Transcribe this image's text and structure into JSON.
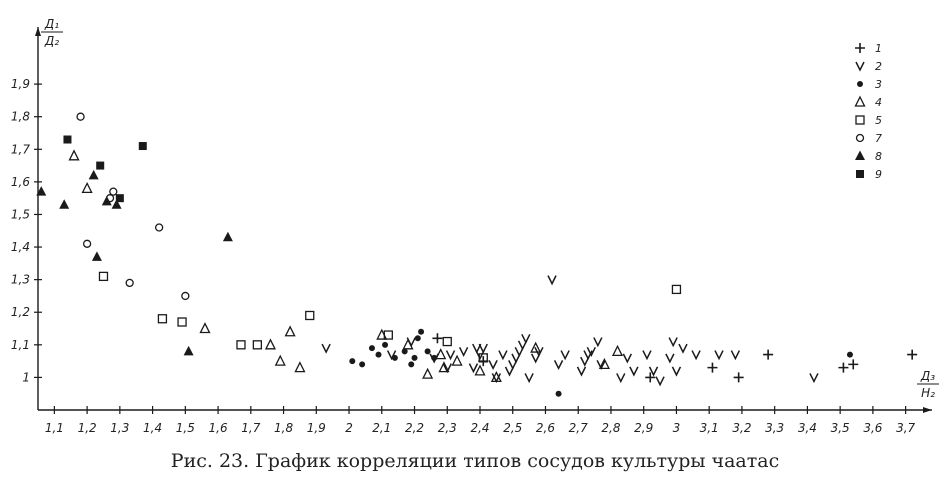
{
  "caption": "Рис. 23. График корреляции типов сосудов культуры чаатас",
  "chart_data": {
    "type": "scatter",
    "title": "",
    "xlabel": {
      "top": "Д₃",
      "bottom": "Н₂"
    },
    "ylabel": {
      "top": "Д₁",
      "bottom": "Д₂"
    },
    "x_ticks": [
      {
        "v": 1.1,
        "label": "1,1"
      },
      {
        "v": 1.2,
        "label": "1,2"
      },
      {
        "v": 1.3,
        "label": "1,3"
      },
      {
        "v": 1.4,
        "label": "1,4"
      },
      {
        "v": 1.5,
        "label": "1,5"
      },
      {
        "v": 1.6,
        "label": "1,6"
      },
      {
        "v": 1.7,
        "label": "1,7"
      },
      {
        "v": 1.8,
        "label": "1,8"
      },
      {
        "v": 1.9,
        "label": "1,9"
      },
      {
        "v": 2.0,
        "label": "2"
      },
      {
        "v": 2.1,
        "label": "2,1"
      },
      {
        "v": 2.2,
        "label": "2,2"
      },
      {
        "v": 2.3,
        "label": "2,3"
      },
      {
        "v": 2.4,
        "label": "2,4"
      },
      {
        "v": 2.5,
        "label": "2,5"
      },
      {
        "v": 2.6,
        "label": "2,6"
      },
      {
        "v": 2.7,
        "label": "2,7"
      },
      {
        "v": 2.8,
        "label": "2,8"
      },
      {
        "v": 2.9,
        "label": "2,9"
      },
      {
        "v": 3.0,
        "label": "3"
      },
      {
        "v": 3.1,
        "label": "3,1"
      },
      {
        "v": 3.2,
        "label": "3,2"
      },
      {
        "v": 3.3,
        "label": "3,3"
      },
      {
        "v": 3.4,
        "label": "3,4"
      },
      {
        "v": 3.5,
        "label": "3,5"
      },
      {
        "v": 3.6,
        "label": "3,6"
      },
      {
        "v": 3.7,
        "label": "3,7"
      }
    ],
    "y_ticks": [
      {
        "v": 1.0,
        "label": "1"
      },
      {
        "v": 1.1,
        "label": "1,1"
      },
      {
        "v": 1.2,
        "label": "1,2"
      },
      {
        "v": 1.3,
        "label": "1,3"
      },
      {
        "v": 1.4,
        "label": "1,4"
      },
      {
        "v": 1.5,
        "label": "1,5"
      },
      {
        "v": 1.6,
        "label": "1,6"
      },
      {
        "v": 1.7,
        "label": "1,7"
      },
      {
        "v": 1.8,
        "label": "1,8"
      },
      {
        "v": 1.9,
        "label": "1,9"
      }
    ],
    "xlim": [
      1.05,
      3.75
    ],
    "ylim": [
      0.9,
      2.02
    ],
    "grid": false,
    "legend_position": "top-right",
    "legend": [
      {
        "label": "1",
        "marker": "plus"
      },
      {
        "label": "2",
        "marker": "v"
      },
      {
        "label": "3",
        "marker": "dot"
      },
      {
        "label": "4",
        "marker": "triangle-open"
      },
      {
        "label": "5",
        "marker": "square-open"
      },
      {
        "label": "7",
        "marker": "circle-open"
      },
      {
        "label": "8",
        "marker": "triangle-filled"
      },
      {
        "label": "9",
        "marker": "square-filled"
      }
    ],
    "series": [
      {
        "marker": "plus",
        "points": [
          [
            2.27,
            1.12
          ],
          [
            2.41,
            1.05
          ],
          [
            2.92,
            1.0
          ],
          [
            3.11,
            1.03
          ],
          [
            3.19,
            1.0
          ],
          [
            3.28,
            1.07
          ],
          [
            3.51,
            1.03
          ],
          [
            3.54,
            1.04
          ],
          [
            3.72,
            1.07
          ]
        ]
      },
      {
        "marker": "v",
        "points": [
          [
            1.93,
            1.09
          ],
          [
            2.13,
            1.07
          ],
          [
            2.19,
            1.11
          ],
          [
            2.26,
            1.06
          ],
          [
            2.3,
            1.03
          ],
          [
            2.31,
            1.07
          ],
          [
            2.35,
            1.08
          ],
          [
            2.38,
            1.03
          ],
          [
            2.39,
            1.09
          ],
          [
            2.4,
            1.07
          ],
          [
            2.41,
            1.09
          ],
          [
            2.44,
            1.04
          ],
          [
            2.45,
            1.0
          ],
          [
            2.47,
            1.07
          ],
          [
            2.49,
            1.02
          ],
          [
            2.5,
            1.04
          ],
          [
            2.51,
            1.06
          ],
          [
            2.52,
            1.08
          ],
          [
            2.53,
            1.1
          ],
          [
            2.54,
            1.12
          ],
          [
            2.55,
            1.0
          ],
          [
            2.57,
            1.06
          ],
          [
            2.58,
            1.08
          ],
          [
            2.62,
            1.3
          ],
          [
            2.64,
            1.04
          ],
          [
            2.66,
            1.07
          ],
          [
            2.71,
            1.02
          ],
          [
            2.72,
            1.05
          ],
          [
            2.73,
            1.07
          ],
          [
            2.74,
            1.08
          ],
          [
            2.76,
            1.11
          ],
          [
            2.77,
            1.04
          ],
          [
            2.83,
            1.0
          ],
          [
            2.85,
            1.06
          ],
          [
            2.87,
            1.02
          ],
          [
            2.91,
            1.07
          ],
          [
            2.93,
            1.02
          ],
          [
            2.95,
            0.99
          ],
          [
            2.98,
            1.06
          ],
          [
            2.99,
            1.11
          ],
          [
            3.0,
            1.02
          ],
          [
            3.02,
            1.09
          ],
          [
            3.06,
            1.07
          ],
          [
            3.13,
            1.07
          ],
          [
            3.18,
            1.07
          ],
          [
            3.42,
            1.0
          ]
        ]
      },
      {
        "marker": "dot",
        "points": [
          [
            2.01,
            1.05
          ],
          [
            2.04,
            1.04
          ],
          [
            2.07,
            1.09
          ],
          [
            2.09,
            1.07
          ],
          [
            2.11,
            1.1
          ],
          [
            2.14,
            1.06
          ],
          [
            2.17,
            1.08
          ],
          [
            2.19,
            1.04
          ],
          [
            2.2,
            1.06
          ],
          [
            2.21,
            1.12
          ],
          [
            2.22,
            1.14
          ],
          [
            2.24,
            1.08
          ],
          [
            2.26,
            1.06
          ],
          [
            2.64,
            0.95
          ],
          [
            3.53,
            1.07
          ]
        ]
      },
      {
        "marker": "triangle-open",
        "points": [
          [
            1.16,
            1.68
          ],
          [
            1.2,
            1.58
          ],
          [
            1.56,
            1.15
          ],
          [
            1.76,
            1.1
          ],
          [
            1.79,
            1.05
          ],
          [
            1.82,
            1.14
          ],
          [
            1.85,
            1.03
          ],
          [
            2.1,
            1.13
          ],
          [
            2.18,
            1.1
          ],
          [
            2.24,
            1.01
          ],
          [
            2.28,
            1.07
          ],
          [
            2.29,
            1.03
          ],
          [
            2.33,
            1.05
          ],
          [
            2.4,
            1.02
          ],
          [
            2.45,
            1.0
          ],
          [
            2.57,
            1.09
          ],
          [
            2.78,
            1.04
          ],
          [
            2.82,
            1.08
          ]
        ]
      },
      {
        "marker": "square-open",
        "points": [
          [
            1.25,
            1.31
          ],
          [
            1.43,
            1.18
          ],
          [
            1.49,
            1.17
          ],
          [
            1.67,
            1.1
          ],
          [
            1.72,
            1.1
          ],
          [
            1.88,
            1.19
          ],
          [
            2.12,
            1.13
          ],
          [
            2.3,
            1.11
          ],
          [
            2.41,
            1.06
          ],
          [
            3.0,
            1.27
          ]
        ]
      },
      {
        "marker": "circle-open",
        "points": [
          [
            1.18,
            1.8
          ],
          [
            1.2,
            1.41
          ],
          [
            1.27,
            1.55
          ],
          [
            1.28,
            1.57
          ],
          [
            1.33,
            1.29
          ],
          [
            1.42,
            1.46
          ],
          [
            1.5,
            1.25
          ]
        ]
      },
      {
        "marker": "triangle-filled",
        "points": [
          [
            1.06,
            1.57
          ],
          [
            1.13,
            1.53
          ],
          [
            1.22,
            1.62
          ],
          [
            1.23,
            1.37
          ],
          [
            1.26,
            1.54
          ],
          [
            1.29,
            1.53
          ],
          [
            1.51,
            1.08
          ],
          [
            1.63,
            1.43
          ]
        ]
      },
      {
        "marker": "square-filled",
        "points": [
          [
            1.14,
            1.73
          ],
          [
            1.24,
            1.65
          ],
          [
            1.3,
            1.55
          ],
          [
            1.37,
            1.71
          ]
        ]
      }
    ]
  }
}
